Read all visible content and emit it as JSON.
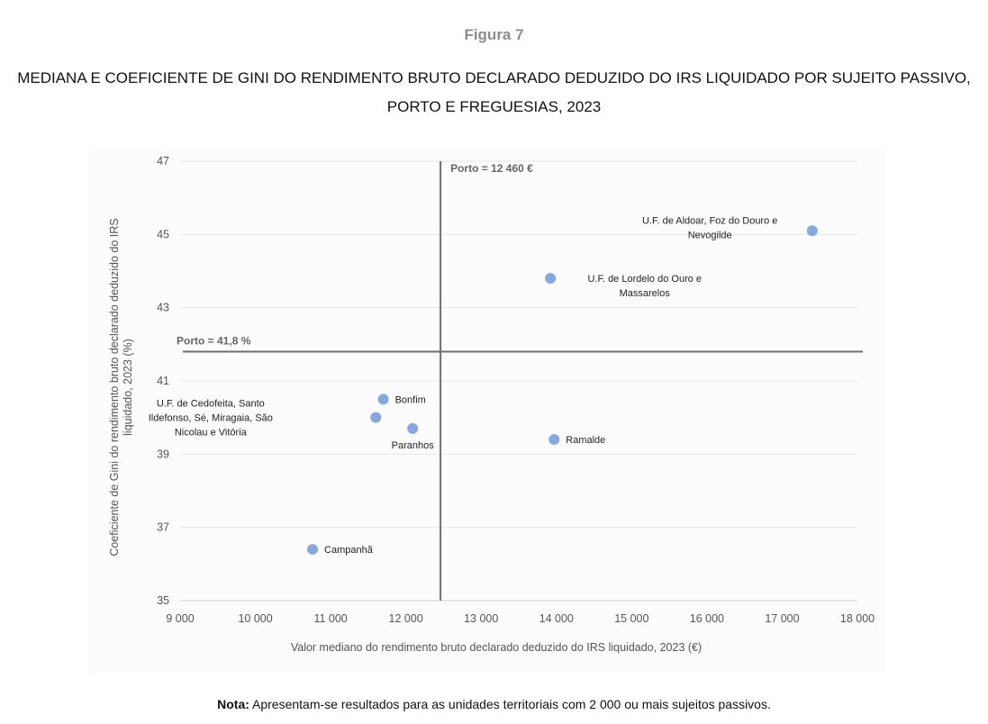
{
  "figure_label": "Figura 7",
  "title_lines": [
    "MEDIANA E COEFICIENTE DE GINI DO RENDIMENTO BRUTO DECLARADO DEDUZIDO DO IRS LIQUIDADO POR SUJEITO PASSIVO,",
    "PORTO E FREGUESIAS, 2023"
  ],
  "note": {
    "label": "Nota:",
    "text": " Apresentam-se resultados para as unidades territoriais com 2 000 ou mais sujeitos passivos."
  },
  "colors": {
    "point": "#86a8e0",
    "reference_line": "#6f6f6f",
    "gridline": "#e6e6e6"
  },
  "chart_data": {
    "type": "scatter",
    "title": "MEDIANA E COEFICIENTE DE GINI DO RENDIMENTO BRUTO DECLARADO DEDUZIDO DO IRS LIQUIDADO POR SUJEITO PASSIVO, PORTO E FREGUESIAS, 2023",
    "xlabel": "Valor mediano do rendimento bruto declarado deduzido do IRS liquidado, 2023 (€)",
    "ylabel_lines": [
      "Coeficiente de Gini do rendimento bruto declarado deduzido do IRS",
      "liquidado, 2023 (%)"
    ],
    "xlim": [
      9000,
      18000
    ],
    "ylim": [
      35,
      47
    ],
    "xticks": [
      9000,
      10000,
      11000,
      12000,
      13000,
      14000,
      15000,
      16000,
      17000,
      18000
    ],
    "xtick_labels": [
      "9 000",
      "10 000",
      "11 000",
      "12 000",
      "13 000",
      "14 000",
      "15 000",
      "16 000",
      "17 000",
      "18 000"
    ],
    "yticks": [
      35,
      37,
      39,
      41,
      43,
      45,
      47
    ],
    "ytick_labels": [
      "35",
      "37",
      "39",
      "41",
      "43",
      "45",
      "47"
    ],
    "grid": "horizontal",
    "reference_lines": [
      {
        "axis": "x",
        "value": 12460,
        "label": "Porto = 12 460 €"
      },
      {
        "axis": "y",
        "value": 41.8,
        "label": "Porto = 41,8 %"
      }
    ],
    "points": [
      {
        "name": "U.F. de Aldoar, Foz do Douro e Nevogilde",
        "label_lines": [
          "U.F. de Aldoar, Foz do Douro e",
          "Nevogilde"
        ],
        "label_pos": "left",
        "x": 17400,
        "y": 45.1
      },
      {
        "name": "U.F. de Lordelo do Ouro e Massarelos",
        "label_lines": [
          "U.F. de Lordelo do Ouro e",
          "Massarelos"
        ],
        "label_pos": "right",
        "x": 13920,
        "y": 43.8
      },
      {
        "name": "Bonfim",
        "label_lines": [
          "Bonfim"
        ],
        "label_pos": "right",
        "x": 11700,
        "y": 40.5
      },
      {
        "name": "U.F. de Cedofeita, Santo Ildefonso, Sé, Miragaia, São Nicolau e Vitória",
        "label_lines": [
          "U.F. de Cedofeita, Santo",
          "Ildefonso, Sé, Miragaia, São",
          "Nicolau e Vitória"
        ],
        "label_pos": "left",
        "x": 11600,
        "y": 40.0
      },
      {
        "name": "Paranhos",
        "label_lines": [
          "Paranhos"
        ],
        "label_pos": "below",
        "x": 12090,
        "y": 39.7
      },
      {
        "name": "Ramalde",
        "label_lines": [
          "Ramalde"
        ],
        "label_pos": "right",
        "x": 13970,
        "y": 39.4
      },
      {
        "name": "Campanhã",
        "label_lines": [
          "Campanhã"
        ],
        "label_pos": "right",
        "x": 10760,
        "y": 36.4
      }
    ]
  }
}
